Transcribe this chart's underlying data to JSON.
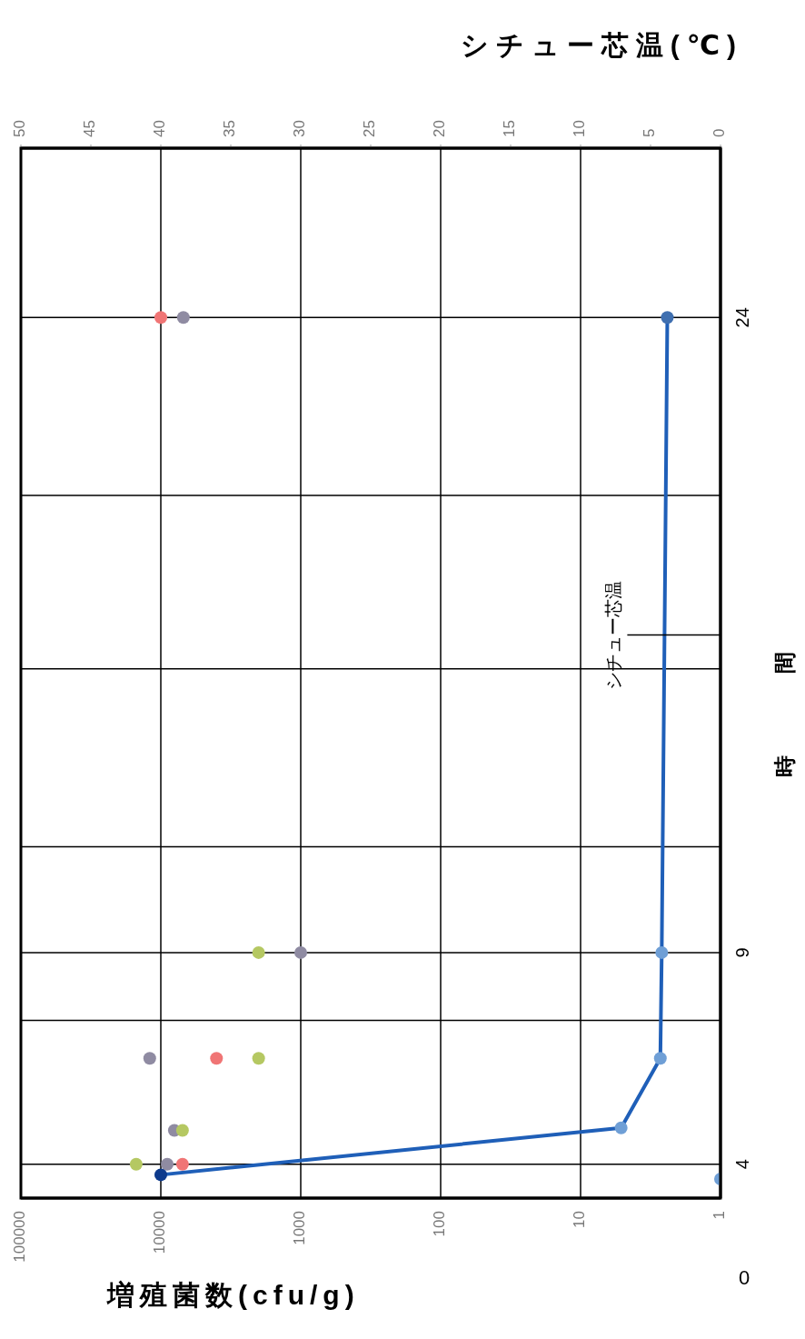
{
  "chart_data": {
    "type": "scatter",
    "xlabel": "増殖菌数(cfu/g)",
    "x2label": "シチュー芯温(℃)",
    "ylabel": "時間",
    "log": "x",
    "xlim": [
      100000,
      1
    ],
    "xticks": [
      100000,
      10000,
      1000,
      100,
      10,
      1
    ],
    "x2lim": [
      50,
      0
    ],
    "x2ticks": [
      50,
      45,
      40,
      35,
      30,
      25,
      20,
      15,
      10,
      5,
      0
    ],
    "ylim": [
      3.2,
      28
    ],
    "yticks": [
      {
        "value": 4,
        "label": "4"
      },
      {
        "value": 7.4,
        "label": null
      },
      {
        "value": 9,
        "label": "9"
      },
      {
        "value": 11.5,
        "label": null
      },
      {
        "value": 15.7,
        "label": null
      },
      {
        "value": 19.8,
        "label": null
      },
      24
    ],
    "grid": true,
    "marker": "circle",
    "annotations": [
      "0"
    ],
    "series": [
      {
        "color": "#f07575",
        "x": [
          7000,
          4000,
          10000
        ],
        "values": [
          4,
          6.5,
          24
        ]
      },
      {
        "color": "#8f8ba2",
        "x": [
          9000,
          8000,
          12000,
          1000,
          6900
        ],
        "values": [
          4,
          4.8,
          6.5,
          9,
          24
        ]
      },
      {
        "color": "#b5c862",
        "x": [
          15000,
          7000,
          2000,
          2000
        ],
        "values": [
          4,
          4.8,
          6.5,
          9
        ]
      },
      {
        "type": "line",
        "axis": "x2",
        "name": "シチュー芯温",
        "color": "#1f5fb8",
        "line_style": "solid",
        "colors": [
          "#0d3a8c",
          "#6f9fd6",
          "#6f9fd6",
          "#6f9fd6",
          "#3f6fb0"
        ],
        "x": [
          40,
          7.1,
          4.3,
          4.2,
          3.8
        ],
        "values": [
          3.75,
          4.86,
          6.5,
          9,
          24
        ]
      },
      {
        "axis": "x2",
        "color": "#6f9fd6",
        "x": [
          0
        ],
        "values": [
          3.65
        ]
      }
    ]
  }
}
